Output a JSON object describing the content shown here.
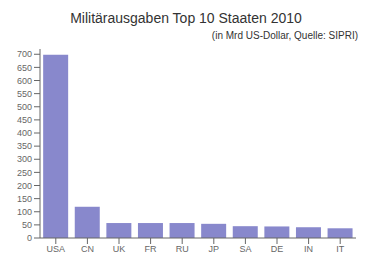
{
  "chart_data": {
    "type": "bar",
    "title": "Militärausgaben Top 10 Staaten 2010",
    "subtitle": "(in Mrd US-Dollar, Quelle: SIPRI)",
    "categories": [
      "USA",
      "CN",
      "UK",
      "FR",
      "RU",
      "JP",
      "SA",
      "DE",
      "IN",
      "IT"
    ],
    "values": [
      698,
      119,
      57,
      57,
      57,
      54,
      45,
      44,
      41,
      37
    ],
    "color": "#8888cc",
    "ylim": [
      0,
      720
    ],
    "yticks": [
      0,
      50,
      100,
      150,
      200,
      250,
      300,
      350,
      400,
      450,
      500,
      550,
      600,
      650,
      700
    ],
    "grid": false
  }
}
